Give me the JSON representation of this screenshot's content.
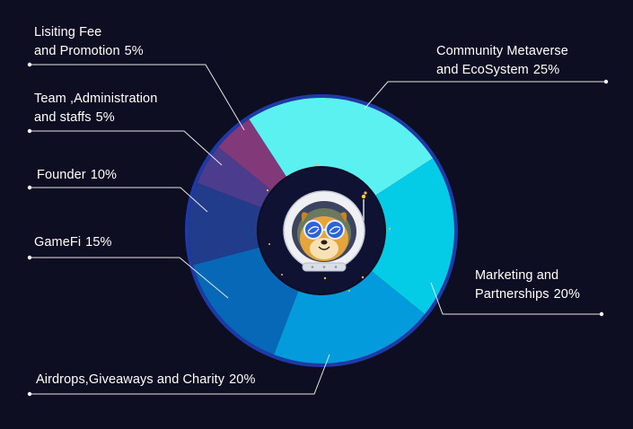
{
  "chart_data": {
    "type": "pie",
    "variant": "donut",
    "slices": [
      {
        "key": "community",
        "line1": "Community Metaverse",
        "line2": "and EcoSystem",
        "value_label": "25%",
        "value": 25,
        "color": "#5bf1f0"
      },
      {
        "key": "marketing",
        "line1": "Marketing and",
        "line2": "Partnerships",
        "value_label": "20%",
        "value": 20,
        "color": "#04cbe6"
      },
      {
        "key": "airdrops",
        "line1": "",
        "line2": "Airdrops,Giveaways and Charity",
        "value_label": "20%",
        "value": 20,
        "color": "#049bdd"
      },
      {
        "key": "gamefi",
        "line1": "",
        "line2": "GameFi",
        "value_label": "15%",
        "value": 15,
        "color": "#0668b6"
      },
      {
        "key": "founder",
        "line1": "",
        "line2": "Founder",
        "value_label": "10%",
        "value": 10,
        "color": "#223c8c"
      },
      {
        "key": "team",
        "line1": "Team ,Administration",
        "line2": "and staffs",
        "value_label": "5%",
        "value": 5,
        "color": "#4b3c8e"
      },
      {
        "key": "listing",
        "line1": "Lisiting Fee",
        "line2": "and Promotion",
        "value_label": "5%",
        "value": 5,
        "color": "#81397a"
      }
    ]
  },
  "colors": {
    "background": "#0d0e22",
    "ring_outline": "#1f39a6",
    "hole": "#101233",
    "leader_line": "#e6e6e6"
  },
  "center": {
    "icon": "astronaut-dog-helmet-icon"
  }
}
